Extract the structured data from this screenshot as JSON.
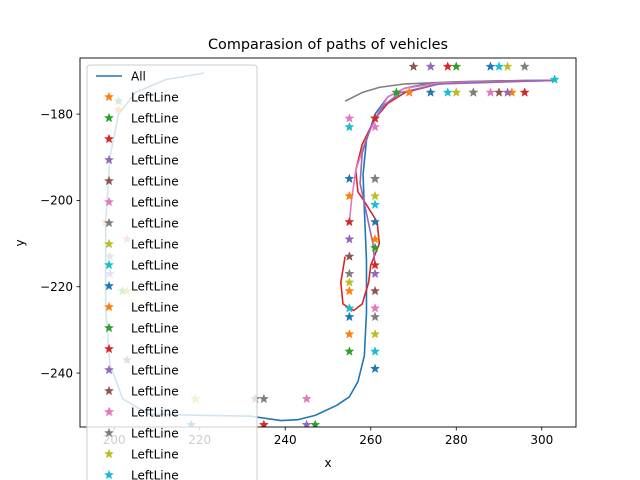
{
  "chart_data": {
    "type": "line",
    "title": "Comparasion of paths of vehicles",
    "xlabel": "x",
    "ylabel": "y",
    "xlim": [
      192,
      308
    ],
    "ylim": [
      -252.5,
      -167
    ],
    "xticks": [
      200,
      220,
      240,
      260,
      280,
      300
    ],
    "yticks": [
      -240,
      -220,
      -200,
      -180
    ],
    "grid": false,
    "legend_position": "upper left",
    "legend": [
      {
        "label": "All",
        "marker": "line",
        "color": "#1f77b4"
      },
      {
        "label": "LeftLine",
        "marker": "star",
        "color": "#ff7f0e"
      },
      {
        "label": "LeftLine",
        "marker": "star",
        "color": "#2ca02c"
      },
      {
        "label": "LeftLine",
        "marker": "star",
        "color": "#d62728"
      },
      {
        "label": "LeftLine",
        "marker": "star",
        "color": "#9467bd"
      },
      {
        "label": "LeftLine",
        "marker": "star",
        "color": "#8c564b"
      },
      {
        "label": "LeftLine",
        "marker": "star",
        "color": "#e377c2"
      },
      {
        "label": "LeftLine",
        "marker": "star",
        "color": "#7f7f7f"
      },
      {
        "label": "LeftLine",
        "marker": "star",
        "color": "#bcbd22"
      },
      {
        "label": "LeftLine",
        "marker": "star",
        "color": "#17becf"
      },
      {
        "label": "LeftLine",
        "marker": "star",
        "color": "#1f77b4"
      },
      {
        "label": "LeftLine",
        "marker": "star",
        "color": "#ff7f0e"
      },
      {
        "label": "LeftLine",
        "marker": "star",
        "color": "#2ca02c"
      },
      {
        "label": "LeftLine",
        "marker": "star",
        "color": "#d62728"
      },
      {
        "label": "LeftLine",
        "marker": "star",
        "color": "#9467bd"
      },
      {
        "label": "LeftLine",
        "marker": "star",
        "color": "#8c564b"
      },
      {
        "label": "LeftLine",
        "marker": "star",
        "color": "#e377c2"
      },
      {
        "label": "LeftLine",
        "marker": "star",
        "color": "#7f7f7f"
      },
      {
        "label": "LeftLine",
        "marker": "star",
        "color": "#bcbd22"
      },
      {
        "label": "LeftLine",
        "marker": "star",
        "color": "#17becf"
      }
    ],
    "lines": [
      {
        "color": "#1f77b4",
        "points": [
          [
            221,
            -170.5
          ],
          [
            212,
            -172
          ],
          [
            205,
            -175
          ],
          [
            201,
            -180
          ],
          [
            199,
            -190
          ],
          [
            198,
            -205
          ],
          [
            198,
            -225
          ],
          [
            199,
            -238
          ],
          [
            202,
            -246
          ],
          [
            208,
            -249.5
          ],
          [
            220,
            -249.8
          ],
          [
            232,
            -250
          ],
          [
            239,
            -251
          ],
          [
            243,
            -250.8
          ],
          [
            247,
            -249.8
          ],
          [
            252,
            -247.5
          ],
          [
            255,
            -245.5
          ],
          [
            257,
            -242
          ],
          [
            258.5,
            -236
          ],
          [
            259,
            -226
          ],
          [
            259,
            -214
          ],
          [
            258.5,
            -202
          ],
          [
            258.2,
            -194
          ],
          [
            259,
            -186
          ],
          [
            261,
            -180
          ],
          [
            264,
            -176
          ],
          [
            268,
            -174
          ],
          [
            274,
            -172.8
          ],
          [
            285,
            -172.4
          ],
          [
            303,
            -172.2
          ]
        ]
      },
      {
        "color": "#7f7f7f",
        "points": [
          [
            254,
            -177
          ],
          [
            258,
            -175
          ],
          [
            262,
            -173.8
          ],
          [
            268,
            -173
          ],
          [
            280,
            -172.5
          ],
          [
            296,
            -172.2
          ],
          [
            303,
            -172.2
          ]
        ]
      },
      {
        "color": "#d62728",
        "points": [
          [
            254,
            -213
          ],
          [
            253,
            -219
          ],
          [
            253.5,
            -224
          ],
          [
            256,
            -225.5
          ],
          [
            258,
            -224
          ],
          [
            259.5,
            -219
          ],
          [
            260,
            -215
          ],
          [
            262,
            -210
          ],
          [
            261.5,
            -205
          ],
          [
            259,
            -201
          ],
          [
            257,
            -198
          ],
          [
            256.5,
            -193
          ],
          [
            258,
            -187
          ],
          [
            261,
            -181
          ],
          [
            264,
            -177.5
          ],
          [
            268,
            -175
          ],
          [
            276,
            -173
          ],
          [
            290,
            -172.4
          ],
          [
            303,
            -172.2
          ]
        ]
      },
      {
        "color": "#e377c2",
        "points": [
          [
            255,
            -205
          ],
          [
            255.5,
            -200
          ],
          [
            256.5,
            -193
          ],
          [
            258.5,
            -187
          ],
          [
            261,
            -181
          ],
          [
            264,
            -176
          ],
          [
            268,
            -174
          ],
          [
            276,
            -172.8
          ],
          [
            303,
            -172.2
          ]
        ]
      },
      {
        "color": "#9467bd",
        "points": [
          [
            261,
            -215
          ],
          [
            260.5,
            -210
          ],
          [
            259,
            -203
          ],
          [
            257.5,
            -196
          ],
          [
            258,
            -189
          ],
          [
            260,
            -183
          ],
          [
            263,
            -178
          ],
          [
            267,
            -175
          ],
          [
            276,
            -173
          ],
          [
            303,
            -172.2
          ]
        ]
      }
    ],
    "marker_groups": [
      {
        "color": "#ff7f0e",
        "points": [
          [
            255,
            -199
          ],
          [
            255,
            -221
          ],
          [
            255,
            -231
          ],
          [
            261,
            -209
          ],
          [
            219,
            -246
          ],
          [
            269,
            -175
          ],
          [
            284,
            -175
          ],
          [
            293,
            -175
          ],
          [
            201,
            -179
          ],
          [
            198,
            -205
          ]
        ]
      },
      {
        "color": "#2ca02c",
        "points": [
          [
            255,
            -235
          ],
          [
            261,
            -211
          ],
          [
            261,
            -181
          ],
          [
            247,
            -252
          ],
          [
            266,
            -175
          ],
          [
            280,
            -169
          ],
          [
            201,
            -177
          ],
          [
            202,
            -221
          ]
        ]
      },
      {
        "color": "#d62728",
        "points": [
          [
            255,
            -205
          ],
          [
            261,
            -215
          ],
          [
            261,
            -181
          ],
          [
            278,
            -169
          ],
          [
            296,
            -175
          ],
          [
            235,
            -252
          ],
          [
            199,
            -249
          ]
        ]
      },
      {
        "color": "#9467bd",
        "points": [
          [
            255,
            -209
          ],
          [
            261,
            -217
          ],
          [
            245,
            -252
          ],
          [
            292,
            -175
          ],
          [
            274,
            -169
          ],
          [
            199,
            -217
          ]
        ]
      },
      {
        "color": "#8c564b",
        "points": [
          [
            255,
            -213
          ],
          [
            261,
            -221
          ],
          [
            261,
            -195
          ],
          [
            270,
            -169
          ],
          [
            290,
            -175
          ],
          [
            233,
            -246
          ],
          [
            203,
            -237
          ]
        ]
      },
      {
        "color": "#e377c2",
        "points": [
          [
            255,
            -181
          ],
          [
            261,
            -183
          ],
          [
            261,
            -225
          ],
          [
            288,
            -175
          ],
          [
            245,
            -246
          ],
          [
            203,
            -209
          ]
        ]
      },
      {
        "color": "#7f7f7f",
        "points": [
          [
            255,
            -217
          ],
          [
            261,
            -227
          ],
          [
            261,
            -195
          ],
          [
            284,
            -175
          ],
          [
            296,
            -169
          ],
          [
            235,
            -246
          ],
          [
            199,
            -213
          ]
        ]
      },
      {
        "color": "#bcbd22",
        "points": [
          [
            255,
            -219
          ],
          [
            261,
            -231
          ],
          [
            261,
            -199
          ],
          [
            280,
            -175
          ],
          [
            292,
            -169
          ],
          [
            219,
            -246
          ],
          [
            203,
            -221
          ]
        ]
      },
      {
        "color": "#17becf",
        "points": [
          [
            255,
            -183
          ],
          [
            255,
            -225
          ],
          [
            261,
            -201
          ],
          [
            261,
            -235
          ],
          [
            290,
            -169
          ],
          [
            278,
            -175
          ],
          [
            303,
            -172
          ]
        ]
      },
      {
        "color": "#1f77b4",
        "points": [
          [
            255,
            -195
          ],
          [
            255,
            -227
          ],
          [
            261,
            -205
          ],
          [
            261,
            -239
          ],
          [
            274,
            -175
          ],
          [
            288,
            -169
          ],
          [
            218,
            -252
          ]
        ]
      }
    ]
  }
}
